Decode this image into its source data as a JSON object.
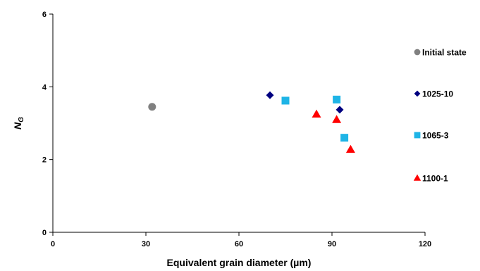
{
  "chart_data": {
    "type": "scatter",
    "title": "",
    "xlabel": "Equivalent grain diameter (µm)",
    "ylabel": {
      "base": "N",
      "sub": "G"
    },
    "xlim": [
      0,
      120
    ],
    "ylim": [
      0,
      6
    ],
    "xticks": [
      0,
      30,
      60,
      90,
      120
    ],
    "yticks": [
      0,
      2,
      4,
      6
    ],
    "grid": false,
    "legend_position": "right",
    "series": [
      {
        "name": "Initial state",
        "marker": "circle",
        "color": "#808080",
        "points": [
          [
            32,
            3.45
          ]
        ]
      },
      {
        "name": "1025-10",
        "marker": "diamond",
        "color": "#000080",
        "points": [
          [
            70,
            3.77
          ],
          [
            92.5,
            3.37
          ]
        ]
      },
      {
        "name": "1065-3",
        "marker": "square",
        "color": "#1EB4E6",
        "points": [
          [
            75,
            3.62
          ],
          [
            91.5,
            3.65
          ],
          [
            94,
            2.6
          ]
        ]
      },
      {
        "name": "1100-1",
        "marker": "triangle",
        "color": "#FF0000",
        "points": [
          [
            85,
            3.25
          ],
          [
            91.5,
            3.1
          ],
          [
            96,
            2.28
          ]
        ]
      }
    ]
  }
}
